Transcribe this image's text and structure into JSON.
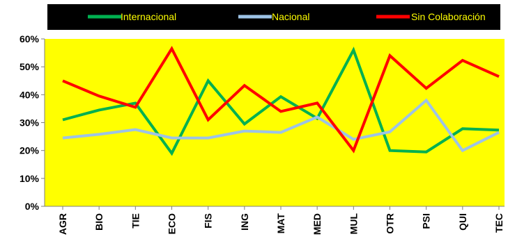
{
  "chart_data": {
    "type": "line",
    "categories": [
      "AGR",
      "BIO",
      "TIE",
      "ECO",
      "FIS",
      "ING",
      "MAT",
      "MED",
      "MUL",
      "OTR",
      "PSI",
      "QUI",
      "TEC"
    ],
    "series": [
      {
        "name": "Internacional",
        "color": "#00b050",
        "values": [
          31,
          34.5,
          37,
          19,
          45,
          29.5,
          39.3,
          31.5,
          56,
          20,
          19.5,
          27.8,
          27.3
        ]
      },
      {
        "name": "Nacional",
        "color": "#9dc3e6",
        "values": [
          24.5,
          25.8,
          27.5,
          24.5,
          24.5,
          27,
          26.5,
          32,
          24,
          26.7,
          38,
          20,
          26.5
        ]
      },
      {
        "name": "Sin Colaboración",
        "color": "#ff0000",
        "values": [
          45,
          39.5,
          35.5,
          56.5,
          31,
          43.3,
          34,
          37,
          20,
          54,
          42.3,
          52.3,
          46.5
        ]
      }
    ],
    "yticks": [
      "0%",
      "10%",
      "20%",
      "30%",
      "40%",
      "50%",
      "60%"
    ],
    "ylim": [
      0,
      60
    ],
    "plot_background": "#ffff00",
    "legend_background": "#000000",
    "legend_text_color": "#ffff00",
    "legend_position": "top",
    "grid": false
  }
}
